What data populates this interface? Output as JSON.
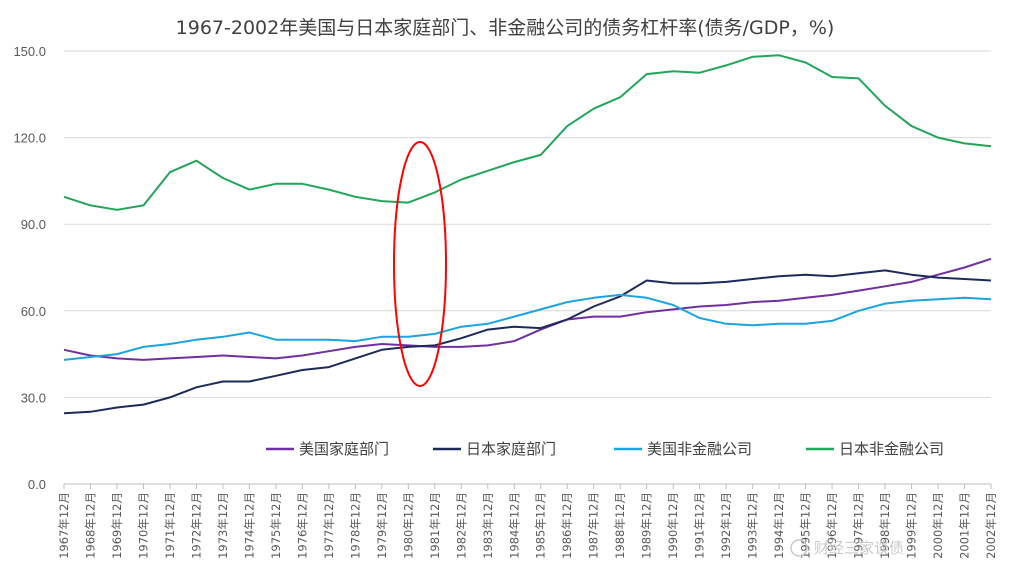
{
  "chart_data": {
    "type": "line",
    "title": "1967-2002年美国与日本家庭部门、非金融公司的债务杠杆率(债务/GDP，%)",
    "xlabel": "",
    "ylabel": "",
    "ylim": [
      0,
      150
    ],
    "yticks": [
      "0.0",
      "30.0",
      "60.0",
      "90.0",
      "120.0",
      "150.0"
    ],
    "x_labels": [
      "1967年12月",
      "1968年12月",
      "1969年12月",
      "1970年12月",
      "1971年12月",
      "1972年12月",
      "1973年12月",
      "1974年12月",
      "1975年12月",
      "1976年12月",
      "1977年12月",
      "1978年12月",
      "1979年12月",
      "1980年12月",
      "1981年12月",
      "1982年12月",
      "1983年12月",
      "1984年12月",
      "1985年12月",
      "1986年12月",
      "1987年12月",
      "1988年12月",
      "1989年12月",
      "1990年12月",
      "1991年12月",
      "1992年12月",
      "1993年12月",
      "1994年12月",
      "1995年12月",
      "1996年12月",
      "1997年12月",
      "1998年12月",
      "1999年12月",
      "2000年12月",
      "2001年12月",
      "2002年12月"
    ],
    "grid": "horizontal",
    "legend_position": "bottom-right",
    "annotation": "red ellipse highlighting 1980-1981",
    "series": [
      {
        "name": "美国家庭部门",
        "color": "#7030a0",
        "values": [
          46.5,
          44.5,
          43.5,
          43.0,
          43.5,
          44.0,
          44.5,
          44.0,
          43.5,
          44.5,
          46.0,
          47.5,
          48.5,
          48.0,
          47.5,
          47.5,
          48.0,
          49.5,
          53.5,
          57.0,
          58.0,
          58.0,
          59.5,
          60.5,
          61.5,
          62.0,
          63.0,
          63.5,
          64.5,
          65.5,
          67.0,
          68.5,
          70.0,
          72.5,
          75.0,
          78.0
        ]
      },
      {
        "name": "日本家庭部门",
        "color": "#1f2a5c",
        "values": [
          24.5,
          25.0,
          26.5,
          27.5,
          30.0,
          33.5,
          35.5,
          35.5,
          37.5,
          39.5,
          40.5,
          43.5,
          46.5,
          47.5,
          48.0,
          50.5,
          53.5,
          54.5,
          54.0,
          57.0,
          61.5,
          65.0,
          70.5,
          69.5,
          69.5,
          70.0,
          71.0,
          72.0,
          72.5,
          72.0,
          73.0,
          74.0,
          72.5,
          71.5,
          71.0,
          70.5
        ]
      },
      {
        "name": "美国非金融公司",
        "color": "#1ca4e0",
        "values": [
          43.0,
          44.0,
          45.0,
          47.5,
          48.5,
          50.0,
          51.0,
          52.5,
          50.0,
          50.0,
          50.0,
          49.5,
          51.0,
          51.0,
          52.0,
          54.5,
          55.5,
          58.0,
          60.5,
          63.0,
          64.5,
          65.5,
          64.5,
          62.0,
          57.5,
          55.5,
          55.0,
          55.5,
          55.5,
          56.5,
          60.0,
          62.5,
          63.5,
          64.0,
          64.5,
          64.0
        ]
      },
      {
        "name": "日本非金融公司",
        "color": "#21a65a",
        "values": [
          99.5,
          96.5,
          95.0,
          96.5,
          108.0,
          112.0,
          106.0,
          102.0,
          104.0,
          104.0,
          102.0,
          99.5,
          98.0,
          97.5,
          101.0,
          105.5,
          108.5,
          111.5,
          114.0,
          124.0,
          130.0,
          134.0,
          142.0,
          143.0,
          142.5,
          145.0,
          148.0,
          148.5,
          146.0,
          141.0,
          140.5,
          131.0,
          124.0,
          120.0,
          118.0,
          117.0
        ]
      }
    ]
  },
  "watermark": "财经三家谈债"
}
